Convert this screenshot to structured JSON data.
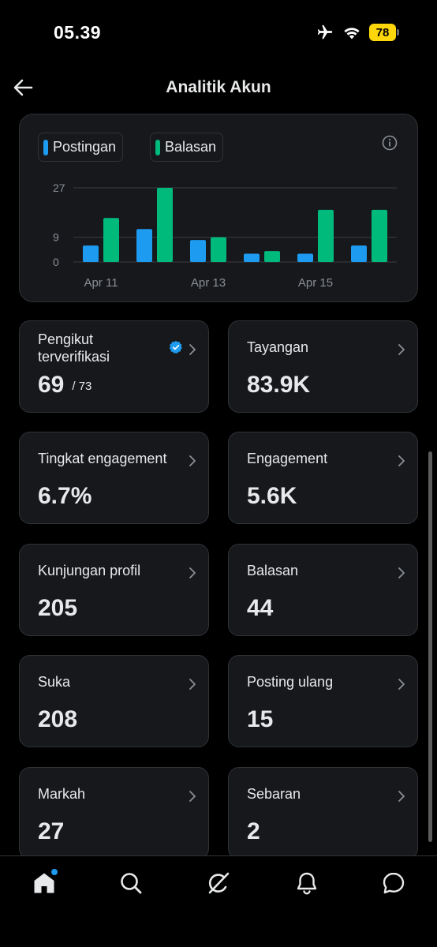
{
  "status": {
    "time": "05.39",
    "battery": "78"
  },
  "header": {
    "title": "Analitik Akun"
  },
  "colors": {
    "posts": "#1d9bf0",
    "replies": "#00ba7c",
    "card_bg": "#16181c",
    "border": "#2f3336"
  },
  "chart_data": {
    "type": "bar",
    "series": [
      {
        "name": "Postingan",
        "values": [
          6,
          12,
          8,
          3,
          3,
          6
        ]
      },
      {
        "name": "Balasan",
        "values": [
          16,
          27,
          9,
          4,
          19,
          19
        ]
      }
    ],
    "categories": [
      "Apr 11",
      "",
      "Apr 13",
      "",
      "Apr 15",
      ""
    ],
    "x_tick_labels": [
      "Apr 11",
      "Apr 13",
      "Apr 15"
    ],
    "y_ticks": [
      0,
      9,
      27
    ],
    "ylim": [
      0,
      27
    ],
    "grid": true,
    "legend": "top-left"
  },
  "stats": [
    {
      "label": "Pengikut terverifikasi",
      "value": "69",
      "sub": "/ 73"
    },
    {
      "label": "Tayangan",
      "value": "83.9K"
    },
    {
      "label": "Tingkat engagement",
      "value": "6.7%"
    },
    {
      "label": "Engagement",
      "value": "5.6K"
    },
    {
      "label": "Kunjungan profil",
      "value": "205"
    },
    {
      "label": "Balasan",
      "value": "44"
    },
    {
      "label": "Suka",
      "value": "208"
    },
    {
      "label": "Posting ulang",
      "value": "15"
    },
    {
      "label": "Markah",
      "value": "27"
    },
    {
      "label": "Sebaran",
      "value": "2"
    }
  ],
  "nav": [
    "home-icon",
    "search-icon",
    "grok-icon",
    "bell-icon",
    "messages-icon"
  ]
}
